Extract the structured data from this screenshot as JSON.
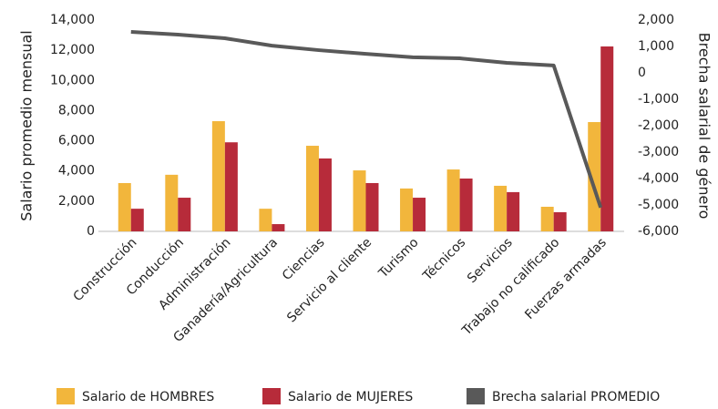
{
  "chart_data": {
    "type": "bar",
    "categories": [
      "Construcción",
      "Conducción",
      "Administración",
      "Ganadería/Agricultura",
      "Ciencias",
      "Servicio al cliente",
      "Turismo",
      "Técnicos",
      "Servicios",
      "Trabajo no calificado",
      "Fuerzas armadas"
    ],
    "series": [
      {
        "name": "Salario de HOMBRES",
        "color": "#f2b63c",
        "values": [
          3200,
          3750,
          7300,
          1500,
          5670,
          4040,
          2840,
          4100,
          3020,
          1630,
          7240
        ]
      },
      {
        "name": "Salario de MUJERES",
        "color": "#b72b3a",
        "values": [
          1500,
          2230,
          5900,
          480,
          4830,
          3200,
          2230,
          3500,
          2600,
          1270,
          12250
        ]
      },
      {
        "name": "Brecha salarial PROMEDIO",
        "color": "#595959",
        "type": "line",
        "axis": "y2",
        "values": [
          1550,
          1450,
          1310,
          1030,
          860,
          720,
          590,
          550,
          380,
          280,
          -5100
        ]
      }
    ],
    "ylabel": "Salario promedio mensual",
    "y2label": "Brecha salarial de género",
    "ylim": [
      0,
      14000
    ],
    "yticks": [
      0,
      {
        "value": 2000,
        "label": "2,000"
      },
      {
        "value": 4000,
        "label": "4,000"
      },
      {
        "value": 6000,
        "label": "6,000"
      },
      {
        "value": 8000,
        "label": "8,000"
      },
      {
        "value": 10000,
        "label": "10,000"
      },
      {
        "value": 12000,
        "label": "12,000"
      },
      {
        "value": 14000,
        "label": "14,000"
      }
    ],
    "y2lim": [
      -6000,
      2000
    ],
    "y2ticks": [
      {
        "value": -6000,
        "label": "-6,000"
      },
      {
        "value": -5000,
        "label": "-5,000"
      },
      {
        "value": -4000,
        "label": "-4,000"
      },
      {
        "value": -3000,
        "label": "-3,000"
      },
      {
        "value": -2000,
        "label": "-2,000"
      },
      {
        "value": -1000,
        "label": "-1,000"
      },
      0,
      {
        "value": 1000,
        "label": "1,000"
      },
      {
        "value": 2000,
        "label": "2,000"
      }
    ],
    "legend": "bottom"
  }
}
